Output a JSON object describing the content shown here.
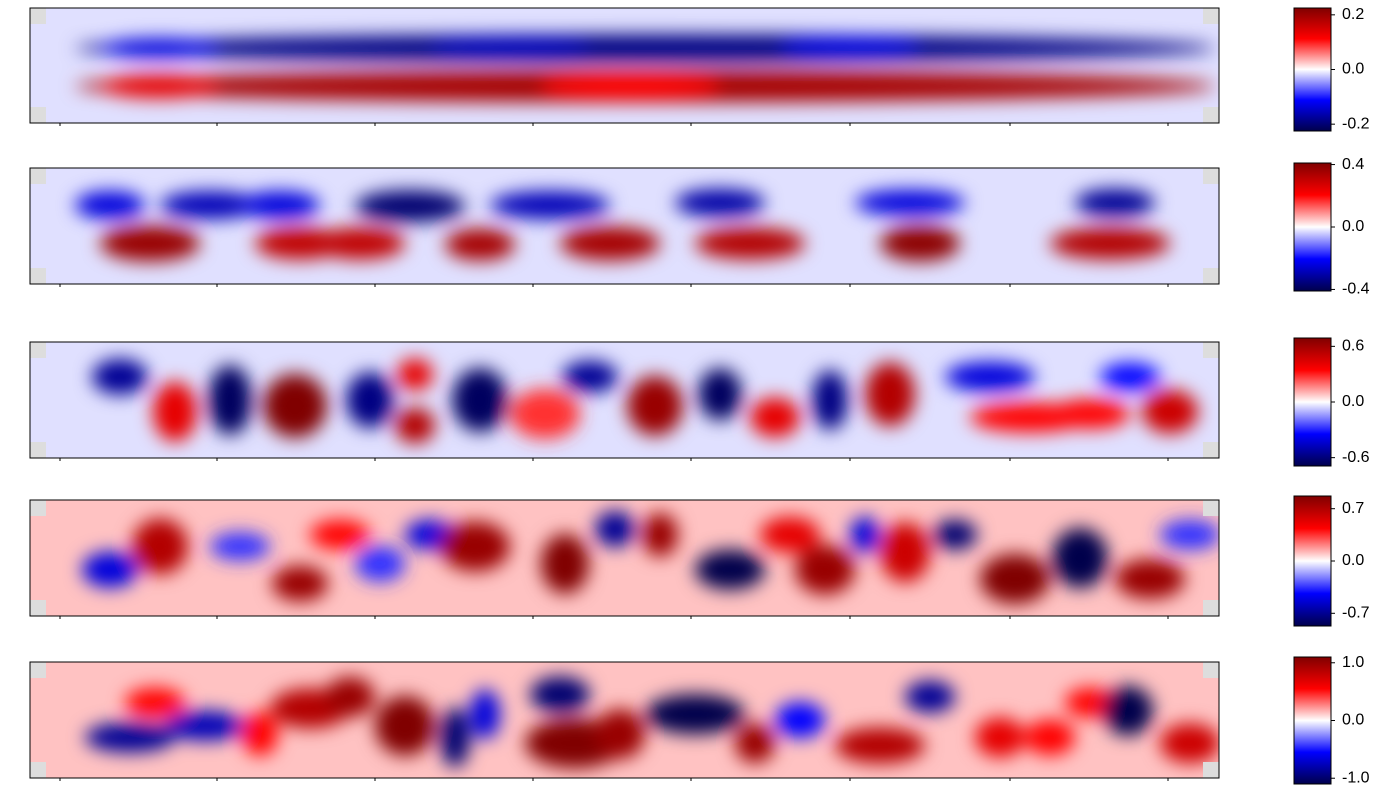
{
  "chart_data": [
    {
      "type": "heatmap",
      "colormap": [
        "#00004c",
        "#0000ff",
        "#ffffff",
        "#ff0000",
        "#800000"
      ],
      "ylim": [
        -0.225,
        0.225
      ],
      "yticks": [
        0.2,
        {
          "value": 0,
          "label": "0.0"
        },
        -0.2
      ]
    },
    {
      "type": "heatmap",
      "colormap": [
        "#00004c",
        "#0000ff",
        "#ffffff",
        "#ff0000",
        "#800000"
      ],
      "ylim": [
        -0.41,
        0.41
      ],
      "yticks": [
        0.4,
        {
          "value": 0,
          "label": "0.0"
        },
        -0.4
      ]
    },
    {
      "type": "heatmap",
      "colormap": [
        "#00004c",
        "#0000ff",
        "#ffffff",
        "#ff0000",
        "#800000"
      ],
      "ylim": [
        -0.69,
        0.69
      ],
      "yticks": [
        0.6,
        {
          "value": 0,
          "label": "0.0"
        },
        -0.6
      ]
    },
    {
      "type": "heatmap",
      "colormap": [
        "#00004c",
        "#0000ff",
        "#ffffff",
        "#ff0000",
        "#800000"
      ],
      "ylim": [
        -0.87,
        0.87
      ],
      "yticks": [
        0.7,
        {
          "value": 0,
          "label": "0.0"
        },
        -0.7
      ]
    },
    {
      "type": "heatmap",
      "colormap": [
        "#00004c",
        "#0000ff",
        "#ffffff",
        "#ff0000",
        "#800000"
      ],
      "ylim": [
        -1.1,
        1.1
      ],
      "yticks": [
        {
          "value": 1,
          "label": "1.0"
        },
        {
          "value": 0,
          "label": "0.0"
        },
        {
          "value": -1,
          "label": "-1.0"
        }
      ]
    }
  ]
}
